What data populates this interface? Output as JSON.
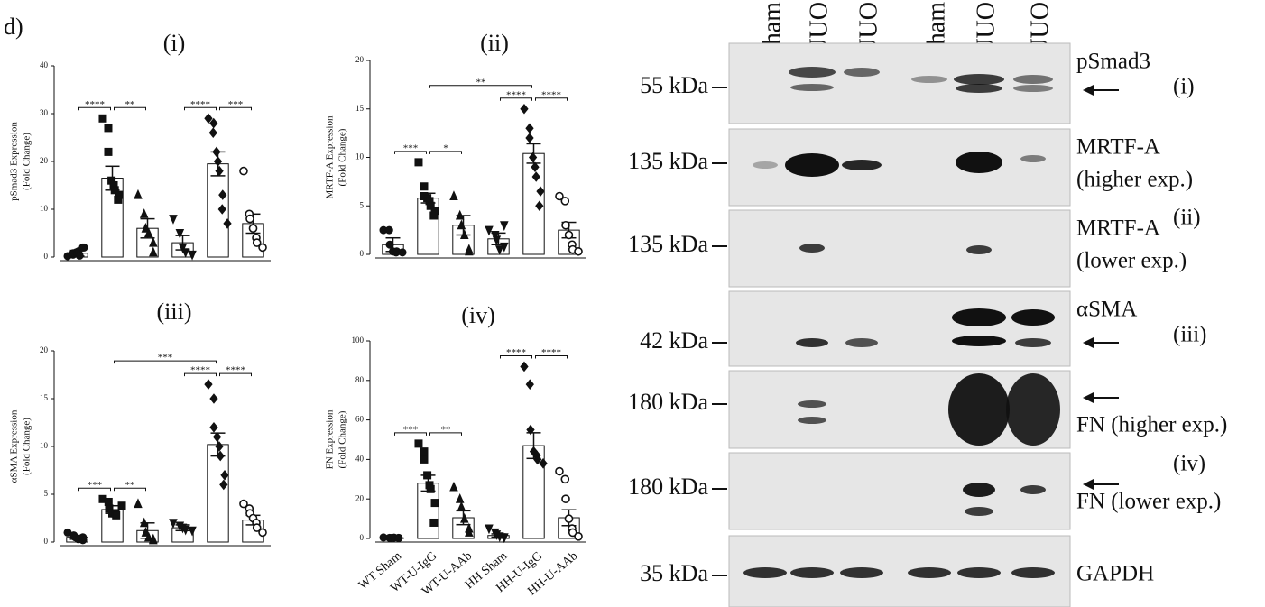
{
  "panel_label": "d)",
  "chart_data": [
    {
      "type": "bar",
      "title": "(i)",
      "ylabel": [
        "pSmad3 Expression",
        "(Fold Change)"
      ],
      "categories": [
        null,
        null,
        null,
        null,
        null,
        null
      ],
      "values": [
        0.8,
        16.5,
        6,
        3,
        19.5,
        7
      ],
      "errors": [
        0.6,
        2.5,
        2,
        1.5,
        2.5,
        2
      ],
      "points": [
        [
          0.2,
          0.5,
          0.8,
          1,
          1.2,
          0.3,
          2,
          2
        ],
        [
          29,
          27,
          22,
          16,
          15,
          14,
          13,
          12
        ],
        [
          13,
          9,
          6,
          5,
          3,
          1
        ],
        [
          8,
          5,
          2,
          1,
          0.5
        ],
        [
          29,
          28,
          26,
          22,
          20,
          18,
          13,
          10,
          7
        ],
        [
          18,
          9,
          8,
          6,
          4,
          3,
          2
        ]
      ],
      "markers": [
        "circle",
        "square",
        "triangle",
        "triangle-down",
        "diamond",
        "open-circle"
      ],
      "ylim": [
        0,
        40
      ],
      "yticks": [
        0,
        10,
        20,
        30,
        40
      ],
      "brackets": [
        {
          "from": 0,
          "to": 1,
          "label": "****"
        },
        {
          "from": 1,
          "to": 2,
          "label": "**"
        },
        {
          "from": 3,
          "to": 4,
          "label": "****"
        },
        {
          "from": 4,
          "to": 5,
          "label": "***"
        }
      ]
    },
    {
      "type": "bar",
      "title": "(ii)",
      "ylabel": [
        "MRTF-A Expression",
        "(Fold Change)"
      ],
      "categories": [
        null,
        null,
        null,
        null,
        null,
        null
      ],
      "values": [
        1,
        5.8,
        3,
        1.6,
        10.4,
        2.5
      ],
      "errors": [
        0.7,
        0.5,
        1,
        0.6,
        1,
        0.8
      ],
      "points": [
        [
          2.5,
          2.5,
          1,
          0.3,
          0.2,
          0.3,
          0.2
        ],
        [
          9.5,
          7,
          6,
          5.8,
          5.5,
          5,
          4.5,
          4
        ],
        [
          6,
          4,
          3,
          2,
          0.5,
          0.3
        ],
        [
          2.5,
          2,
          1.5,
          0.5,
          0.8,
          3
        ],
        [
          15,
          13,
          12,
          10,
          9,
          8,
          6.5,
          5
        ],
        [
          6,
          5.5,
          3,
          2,
          1,
          0.5,
          0.3
        ]
      ],
      "markers": [
        "circle",
        "square",
        "triangle",
        "triangle-down",
        "diamond",
        "open-circle"
      ],
      "ylim": [
        0,
        20
      ],
      "yticks": [
        0,
        5,
        10,
        15,
        20
      ],
      "brackets": [
        {
          "from": 0,
          "to": 1,
          "label": "***"
        },
        {
          "from": 1,
          "to": 2,
          "label": "*"
        },
        {
          "from": 3,
          "to": 4,
          "label": "****"
        },
        {
          "from": 4,
          "to": 5,
          "label": "****"
        },
        {
          "from": 1,
          "to": 4,
          "label": "**"
        }
      ]
    },
    {
      "type": "bar",
      "title": "(iii)",
      "ylabel": [
        "αSMA Expression",
        "(Fold Change)"
      ],
      "categories": [
        null,
        null,
        null,
        null,
        null,
        null
      ],
      "values": [
        0.5,
        3.4,
        1.2,
        1.5,
        10.2,
        2.3
      ],
      "errors": [
        0.2,
        0.4,
        0.8,
        0.3,
        1.2,
        0.5
      ],
      "points": [
        [
          1,
          0.7,
          0.5,
          0.3,
          0.2,
          0.5
        ],
        [
          4.5,
          4.2,
          3.5,
          3,
          3,
          2.8,
          3.8
        ],
        [
          4,
          2,
          1,
          0.5,
          0.3,
          0.2
        ],
        [
          2,
          1.7,
          1.5,
          1.3,
          1.2
        ],
        [
          16.5,
          15,
          12,
          11,
          10,
          9,
          7,
          6
        ],
        [
          4,
          3.5,
          3,
          2.5,
          2,
          1.5,
          1
        ]
      ],
      "markers": [
        "circle",
        "square",
        "triangle",
        "triangle-down",
        "diamond",
        "open-circle"
      ],
      "ylim": [
        0,
        20
      ],
      "yticks": [
        0,
        5,
        10,
        15,
        20
      ],
      "brackets": [
        {
          "from": 0,
          "to": 1,
          "label": "***"
        },
        {
          "from": 1,
          "to": 2,
          "label": "**"
        },
        {
          "from": 3,
          "to": 4,
          "label": "****"
        },
        {
          "from": 4,
          "to": 5,
          "label": "****"
        },
        {
          "from": 1,
          "to": 4,
          "label": "***"
        }
      ]
    },
    {
      "type": "bar",
      "title": "(iv)",
      "ylabel": [
        "FN Expression",
        "(Fold Change)"
      ],
      "categories": [
        "WT Sham",
        "WT-U-IgG",
        "WT-U-AAb",
        "HH Sham",
        "HH-U-IgG",
        "HH-U-AAb"
      ],
      "values": [
        0.3,
        28,
        10.5,
        1.5,
        47,
        10.5
      ],
      "errors": [
        0.2,
        4,
        3.5,
        0.8,
        6.5,
        4
      ],
      "points": [
        [
          0.5,
          0.3,
          0.2,
          0.4,
          0.3,
          0.2
        ],
        [
          48,
          44,
          40,
          32,
          27,
          25,
          18,
          8
        ],
        [
          26,
          20,
          16,
          10,
          5,
          3
        ],
        [
          5,
          3,
          2,
          1,
          0.5,
          0.5
        ],
        [
          87,
          78,
          55,
          44,
          42,
          40,
          38
        ],
        [
          34,
          30,
          20,
          10,
          5,
          3,
          1
        ]
      ],
      "markers": [
        "circle",
        "square",
        "triangle",
        "triangle-down",
        "diamond",
        "open-circle"
      ],
      "ylim": [
        0,
        100
      ],
      "yticks": [
        0,
        20,
        40,
        60,
        80,
        100
      ],
      "brackets": [
        {
          "from": 0,
          "to": 1,
          "label": "***"
        },
        {
          "from": 1,
          "to": 2,
          "label": "**"
        },
        {
          "from": 3,
          "to": 4,
          "label": "****"
        },
        {
          "from": 4,
          "to": 5,
          "label": "****"
        }
      ]
    }
  ],
  "blot": {
    "lanes": [
      "Sham",
      "UUO",
      "UUO",
      "Sham",
      "UUO",
      "UUO"
    ],
    "rows": [
      {
        "kda": "55 kDa",
        "labels": [
          "pSmad3",
          "(i)"
        ]
      },
      {
        "kda": "135 kDa",
        "labels": [
          "MRTF-A",
          "(higher exp.)"
        ]
      },
      {
        "kda": "135 kDa",
        "labels": [
          "MRTF-A",
          "(lower exp.)",
          "(ii)"
        ]
      },
      {
        "kda": "42 kDa",
        "labels": [
          "αSMA",
          "(iii)"
        ]
      },
      {
        "kda": "180 kDa",
        "labels": [
          "FN (higher exp.)"
        ]
      },
      {
        "kda": "180 kDa",
        "labels": [
          "FN (lower exp.)",
          "(iv)"
        ]
      },
      {
        "kda": "35 kDa",
        "labels": [
          "GAPDH"
        ]
      }
    ]
  }
}
